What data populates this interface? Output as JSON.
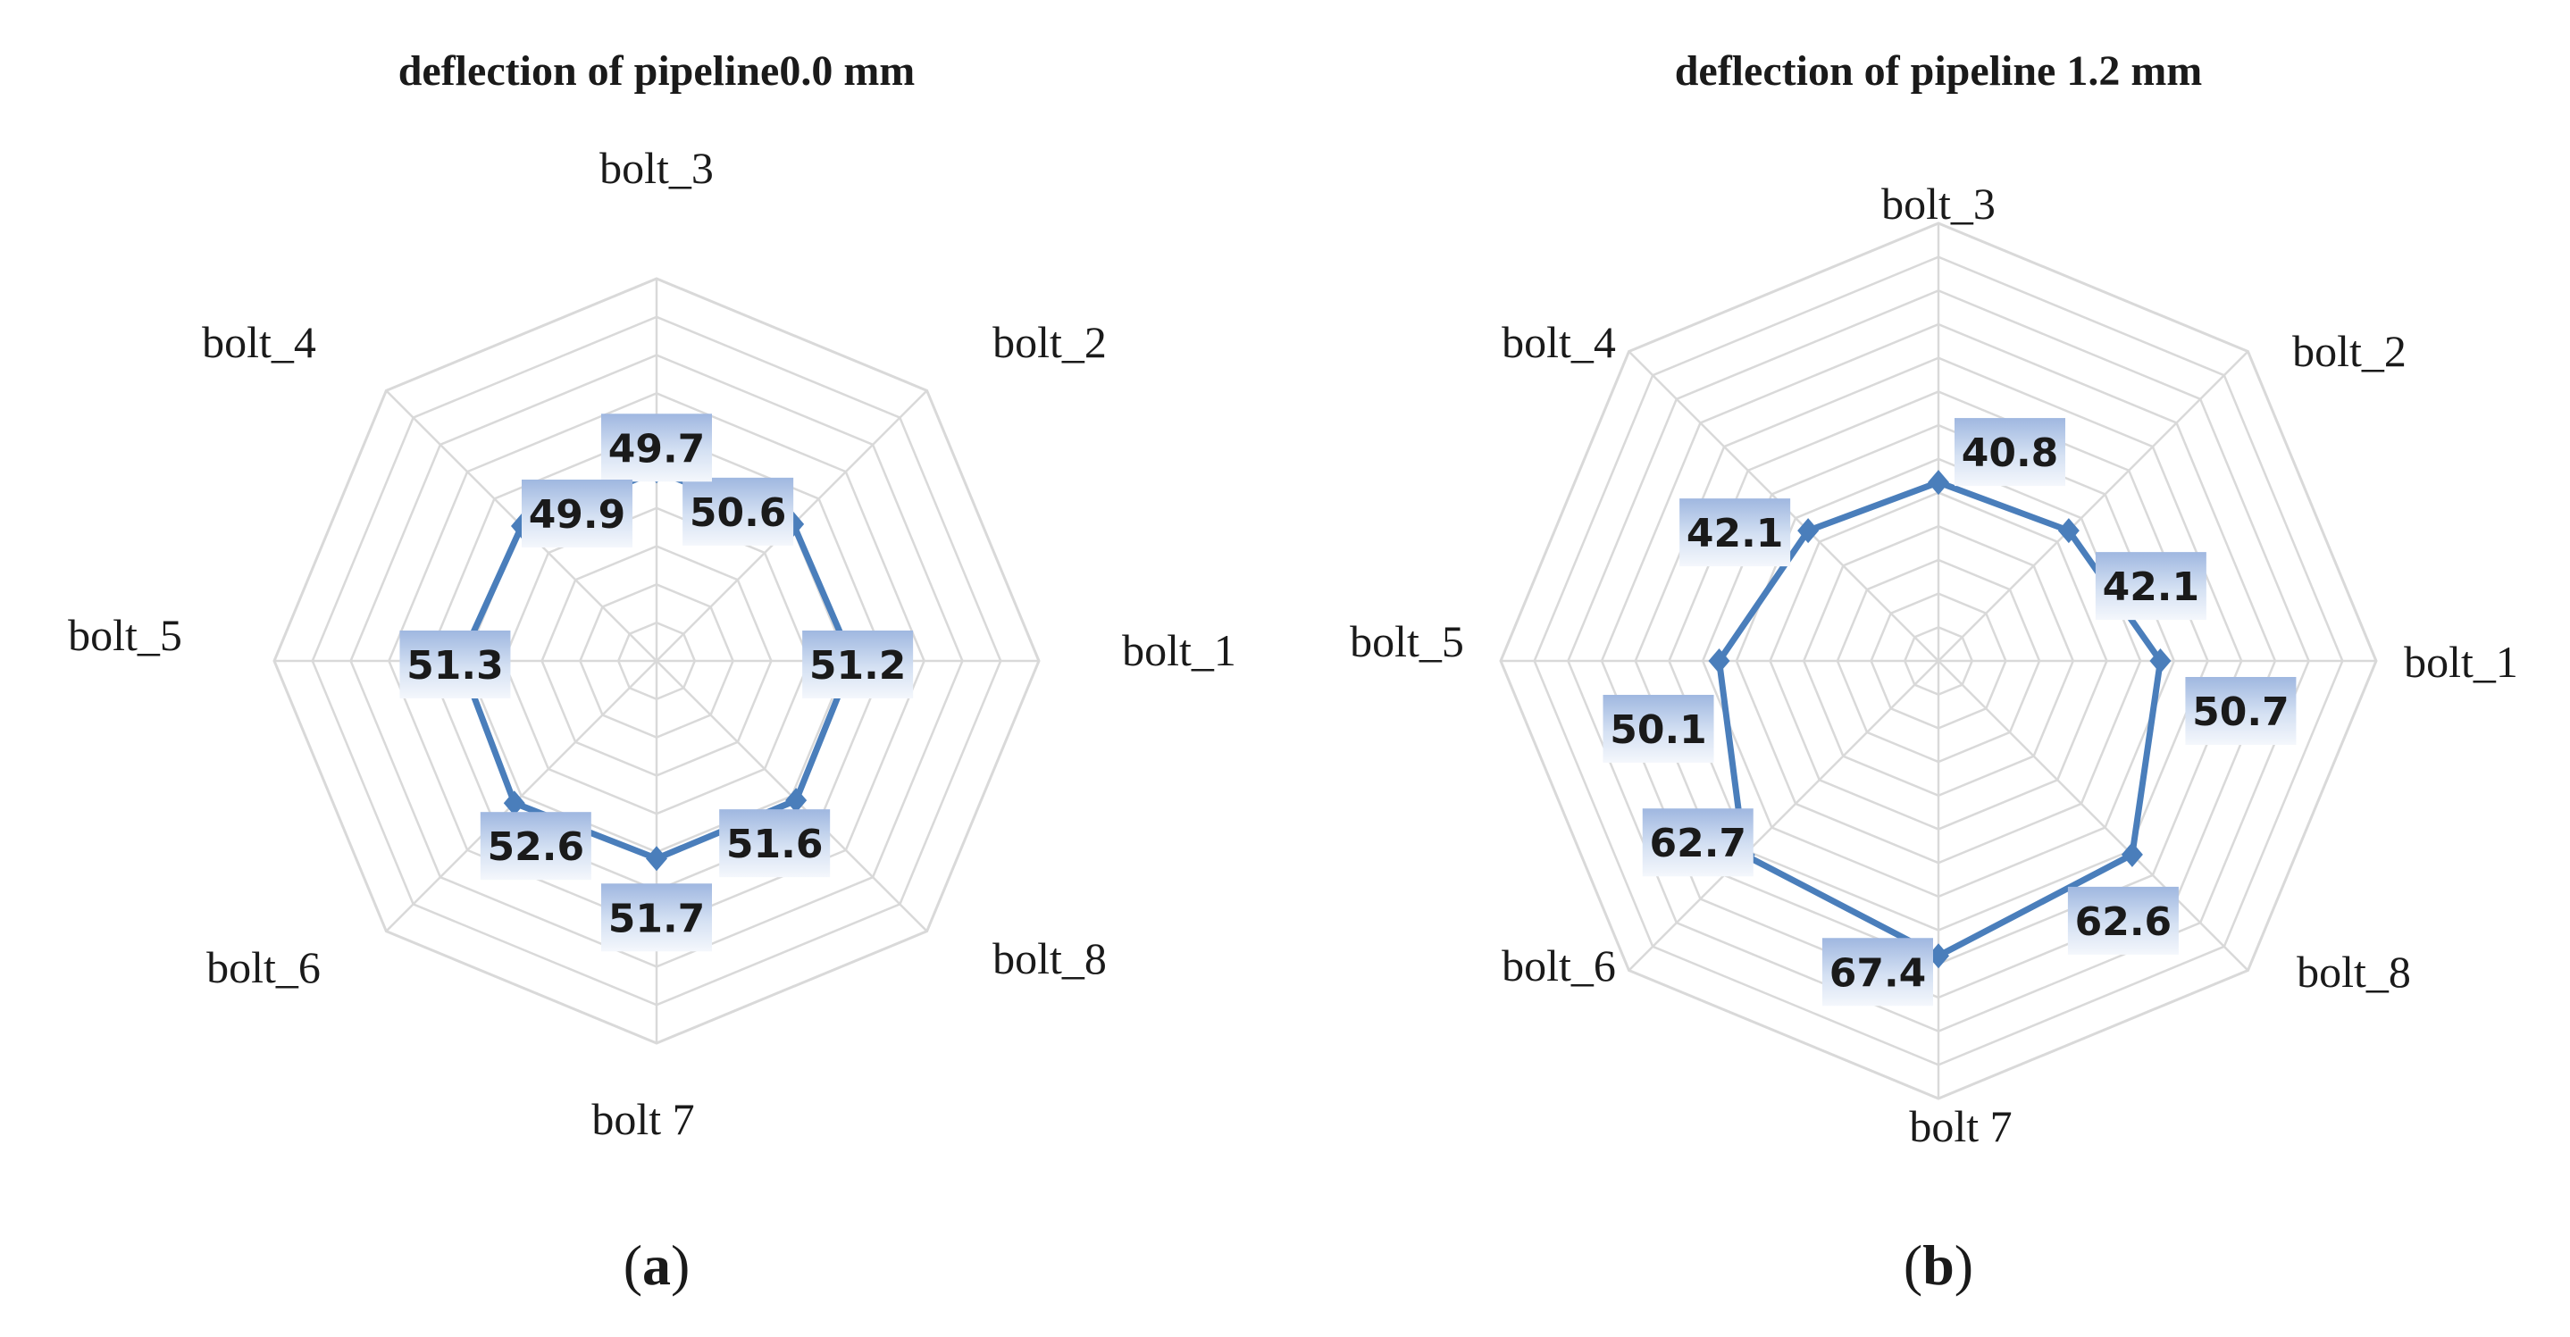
{
  "chart_data": [
    {
      "type": "radar",
      "panel": "a",
      "title": "deflection  of pipeline0.0 mm",
      "caption_letter": "a",
      "categories": [
        "bolt_1",
        "bolt_2",
        "bolt_3",
        "bolt_4",
        "bolt_5",
        "bolt_6",
        "bolt 7",
        "bolt_8"
      ],
      "values": [
        51.2,
        50.6,
        49.7,
        49.9,
        51.3,
        52.6,
        51.7,
        51.6
      ],
      "value_labels": [
        "51.2",
        "50.6",
        "49.7",
        "49.9",
        "51.3",
        "52.6",
        "51.7",
        "51.6"
      ],
      "rlim": [
        0,
        100
      ],
      "grid_rings": 10,
      "line_color": "#4a7ebb",
      "grid_color": "#d9d9d9"
    },
    {
      "type": "radar",
      "panel": "b",
      "title": "deflection of pipeline 1.2 mm",
      "caption_letter": "b",
      "categories": [
        "bolt_1",
        "bolt_2",
        "bolt_3",
        "bolt_4",
        "bolt_5",
        "bolt_6",
        "bolt 7",
        "bolt_8"
      ],
      "values": [
        50.7,
        42.1,
        40.8,
        42.1,
        50.1,
        62.7,
        67.4,
        62.6
      ],
      "value_labels": [
        "50.7",
        "42.1",
        "40.8",
        "42.1",
        "50.1",
        "62.7",
        "67.4",
        "62.6"
      ],
      "rlim": [
        0,
        100
      ],
      "grid_rings": 13,
      "line_color": "#4a7ebb",
      "grid_color": "#d9d9d9"
    }
  ]
}
